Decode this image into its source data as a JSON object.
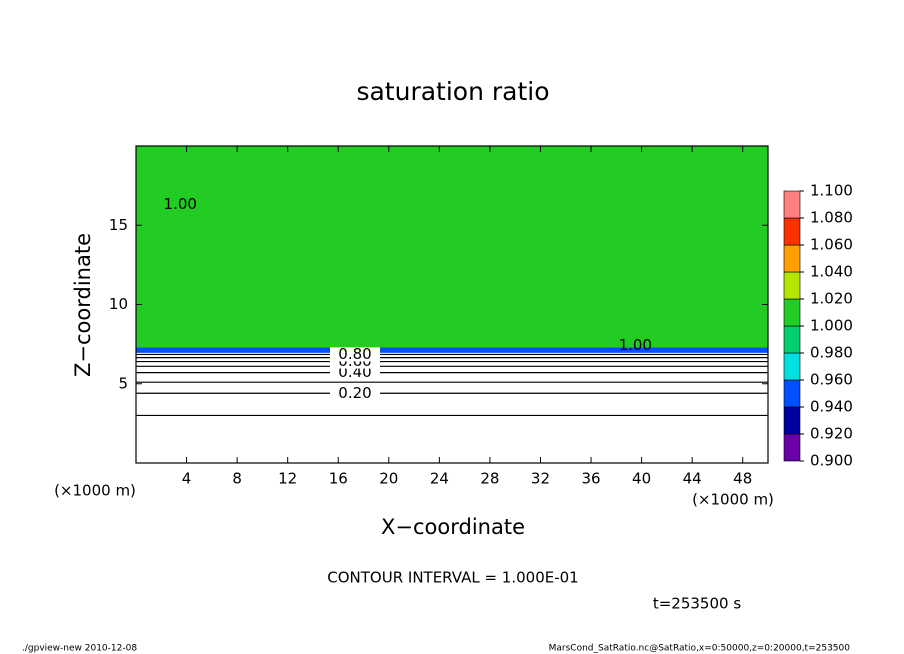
{
  "chart_data": {
    "type": "contour",
    "title": "saturation ratio",
    "x_label": "X−coordinate",
    "y_label": "Z−coordinate",
    "x_unit": "(×1000 m)",
    "y_unit": "(×1000 m)",
    "xlim": [
      0,
      50
    ],
    "ylim": [
      0,
      20
    ],
    "xticks": [
      4,
      8,
      12,
      16,
      20,
      24,
      28,
      32,
      36,
      40,
      44,
      48
    ],
    "yticks": [
      5,
      10,
      15
    ],
    "colorbar": {
      "levels": [
        {
          "value": 0.9,
          "label": "0.900"
        },
        {
          "value": 0.92,
          "label": "0.920"
        },
        {
          "value": 0.94,
          "label": "0.940"
        },
        {
          "value": 0.96,
          "label": "0.960"
        },
        {
          "value": 0.98,
          "label": "0.980"
        },
        {
          "value": 1.0,
          "label": "1.000"
        },
        {
          "value": 1.02,
          "label": "1.020"
        },
        {
          "value": 1.04,
          "label": "1.040"
        },
        {
          "value": 1.06,
          "label": "1.060"
        },
        {
          "value": 1.08,
          "label": "1.080"
        },
        {
          "value": 1.1,
          "label": "1.100"
        }
      ],
      "colors": [
        "#6a00a8",
        "#0000a0",
        "#0050ff",
        "#00e0e0",
        "#00d070",
        "#22cc22",
        "#b4e600",
        "#ffa000",
        "#ff3000",
        "#ff8080"
      ]
    },
    "field": [
      {
        "value": 1.0,
        "z": [
          7.3,
          20
        ]
      },
      {
        "value": 0.94,
        "z": [
          6.95,
          7.3
        ]
      }
    ],
    "contours": [
      {
        "level": 0.1,
        "z": 3.0
      },
      {
        "level": 0.2,
        "z": 4.4,
        "label": "0.20"
      },
      {
        "level": 0.3,
        "z": 5.1
      },
      {
        "level": 0.4,
        "z": 5.7,
        "label": "0.40"
      },
      {
        "level": 0.5,
        "z": 6.1
      },
      {
        "level": 0.6,
        "z": 6.4,
        "label": "0.60"
      },
      {
        "level": 0.7,
        "z": 6.65
      },
      {
        "level": 0.8,
        "z": 6.85,
        "label": "0.80"
      }
    ],
    "contour_labels": [
      {
        "x": 3.5,
        "z": 16.3,
        "label": "1.00"
      },
      {
        "x": 39.5,
        "z": 7.4,
        "label": "1.00"
      }
    ],
    "contour_interval": "CONTOUR INTERVAL = 1.000E-01",
    "time": "t=253500 s",
    "footer_left": "./gpview-new  2010-12-08",
    "footer_right": "MarsCond_SatRatio.nc@SatRatio,x=0:50000,z=0:20000,t=253500"
  }
}
